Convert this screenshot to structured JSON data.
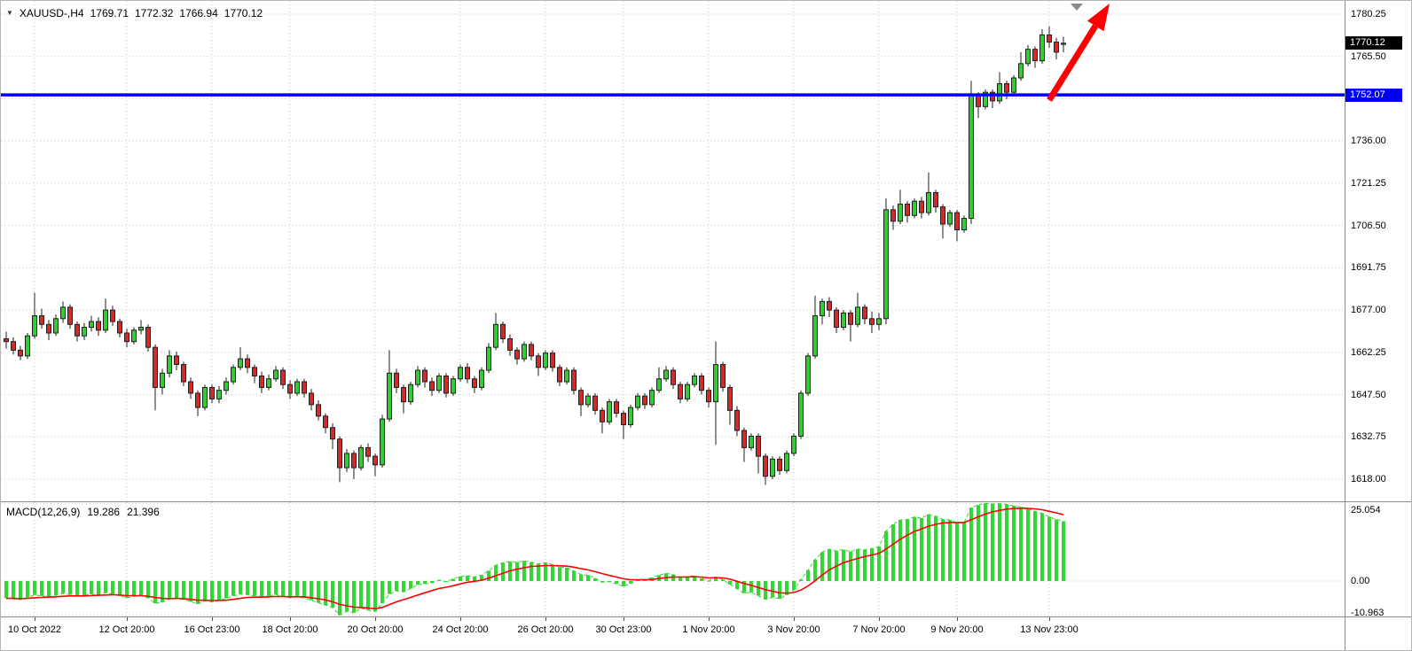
{
  "header": {
    "dropdown_icon": "▼",
    "symbol_period": "XAUUSD-,H4",
    "open": "1769.71",
    "high": "1772.32",
    "low": "1766.94",
    "close": "1770.12"
  },
  "indicator": {
    "name": "MACD(12,26,9)",
    "main_value": "19.286",
    "signal_value": "21.396"
  },
  "price_axis": {
    "labels": [
      "1780.25",
      "1765.50",
      "1736.00",
      "1721.25",
      "1706.50",
      "1691.75",
      "1677.00",
      "1662.25",
      "1647.50",
      "1632.75",
      "1618.00"
    ],
    "last_price_badge": "1770.12",
    "hline_badge": "1752.07"
  },
  "macd_axis": {
    "labels": [
      "25.054",
      "0.00",
      "-10.963"
    ]
  },
  "colors": {
    "bull_candle": "#32CD32",
    "bear_candle": "#D22B2B",
    "candle_outline": "#1f1f1f",
    "grid": "#c3c6d2",
    "hline": "#0000FF",
    "arrow": "#FF0000",
    "macd_histogram": "#33D633",
    "macd_signal": "#FF0000",
    "last_badge_bg": "#000000",
    "hline_badge_bg": "#0000EE",
    "shift_marker": "#8a8a8a"
  },
  "chart_data": {
    "type": "candlestick",
    "symbol": "XAUUSD-",
    "timeframe": "H4",
    "current_ohlc": {
      "open": 1769.71,
      "high": 1772.32,
      "low": 1766.94,
      "close": 1770.12
    },
    "y_range": [
      1618.0,
      1780.25
    ],
    "y_grid_prices": [
      1780.25,
      1765.5,
      1750.75,
      1736.0,
      1721.25,
      1706.5,
      1691.75,
      1677.0,
      1662.25,
      1647.5,
      1632.75,
      1618.0
    ],
    "hline_price": 1752.07,
    "last_price": 1770.12,
    "grid": "dotted",
    "annotations": [
      {
        "type": "horizontal-line",
        "price": 1752.07,
        "color": "#0000FF"
      },
      {
        "type": "arrow",
        "direction": "up-right",
        "color": "#FF0000"
      }
    ],
    "x_ticks": [
      {
        "index": 4,
        "label": "10 Oct 2022"
      },
      {
        "index": 17,
        "label": "12 Oct 20:00"
      },
      {
        "index": 29,
        "label": "16 Oct 23:00"
      },
      {
        "index": 40,
        "label": "18 Oct 20:00"
      },
      {
        "index": 52,
        "label": "20 Oct 20:00"
      },
      {
        "index": 64,
        "label": "24 Oct 20:00"
      },
      {
        "index": 76,
        "label": "26 Oct 20:00"
      },
      {
        "index": 87,
        "label": "30 Oct 23:00"
      },
      {
        "index": 99,
        "label": "1 Nov 20:00"
      },
      {
        "index": 111,
        "label": "3 Nov 20:00"
      },
      {
        "index": 123,
        "label": "7 Nov 20:00"
      },
      {
        "index": 134,
        "label": "9 Nov 20:00"
      },
      {
        "index": 147,
        "label": "13 Nov 23:00"
      }
    ],
    "candles": [
      [
        1667.0,
        1669.5,
        1663.5,
        1666.0
      ],
      [
        1666.0,
        1667.5,
        1661.5,
        1663.0
      ],
      [
        1663.0,
        1664.5,
        1659.5,
        1661.0
      ],
      [
        1661.0,
        1669.0,
        1660.0,
        1668.0
      ],
      [
        1668.0,
        1683.0,
        1667.0,
        1675.0
      ],
      [
        1675.0,
        1677.5,
        1670.5,
        1672.0
      ],
      [
        1672.0,
        1673.5,
        1666.5,
        1669.0
      ],
      [
        1669.0,
        1675.5,
        1668.0,
        1674.0
      ],
      [
        1674.0,
        1680.0,
        1672.5,
        1678.0
      ],
      [
        1678.0,
        1679.0,
        1670.5,
        1672.0
      ],
      [
        1672.0,
        1673.0,
        1666.0,
        1668.0
      ],
      [
        1668.0,
        1672.5,
        1666.5,
        1671.0
      ],
      [
        1671.0,
        1675.0,
        1669.5,
        1673.0
      ],
      [
        1673.0,
        1674.5,
        1668.0,
        1670.0
      ],
      [
        1670.0,
        1681.0,
        1669.0,
        1677.0
      ],
      [
        1677.0,
        1678.5,
        1671.5,
        1673.0
      ],
      [
        1673.0,
        1674.0,
        1667.5,
        1669.0
      ],
      [
        1669.0,
        1670.5,
        1664.0,
        1666.0
      ],
      [
        1666.0,
        1671.0,
        1665.0,
        1670.0
      ],
      [
        1670.0,
        1673.5,
        1668.5,
        1671.0
      ],
      [
        1671.0,
        1672.0,
        1662.5,
        1664.0
      ],
      [
        1664.0,
        1665.0,
        1642.0,
        1650.0
      ],
      [
        1650.0,
        1656.5,
        1647.5,
        1655.0
      ],
      [
        1655.0,
        1663.0,
        1653.5,
        1661.0
      ],
      [
        1661.0,
        1662.5,
        1656.0,
        1658.0
      ],
      [
        1658.0,
        1659.0,
        1650.5,
        1652.0
      ],
      [
        1652.0,
        1653.5,
        1646.0,
        1648.0
      ],
      [
        1648.0,
        1649.0,
        1640.0,
        1643.0
      ],
      [
        1643.0,
        1651.0,
        1642.0,
        1650.0
      ],
      [
        1650.0,
        1651.0,
        1644.5,
        1646.0
      ],
      [
        1646.0,
        1650.5,
        1644.5,
        1649.0
      ],
      [
        1649.0,
        1653.5,
        1647.5,
        1652.0
      ],
      [
        1652.0,
        1658.0,
        1651.0,
        1657.0
      ],
      [
        1657.0,
        1664.0,
        1656.0,
        1660.0
      ],
      [
        1660.0,
        1661.5,
        1655.0,
        1657.0
      ],
      [
        1657.0,
        1658.0,
        1651.5,
        1654.0
      ],
      [
        1654.0,
        1655.5,
        1648.0,
        1650.0
      ],
      [
        1650.0,
        1654.5,
        1649.0,
        1653.0
      ],
      [
        1653.0,
        1657.5,
        1652.0,
        1656.0
      ],
      [
        1656.0,
        1657.0,
        1649.5,
        1651.0
      ],
      [
        1651.0,
        1652.5,
        1646.0,
        1648.0
      ],
      [
        1648.0,
        1653.0,
        1647.0,
        1652.0
      ],
      [
        1652.0,
        1653.0,
        1646.5,
        1648.0
      ],
      [
        1648.0,
        1649.5,
        1642.0,
        1644.0
      ],
      [
        1644.0,
        1645.5,
        1638.5,
        1640.0
      ],
      [
        1640.0,
        1641.0,
        1634.0,
        1636.0
      ],
      [
        1636.0,
        1637.5,
        1628.5,
        1632.0
      ],
      [
        1632.0,
        1633.0,
        1617.0,
        1622.0
      ],
      [
        1622.0,
        1628.5,
        1620.5,
        1627.0
      ],
      [
        1627.0,
        1628.0,
        1618.0,
        1622.0
      ],
      [
        1622.0,
        1630.0,
        1621.0,
        1629.0
      ],
      [
        1629.0,
        1630.5,
        1624.0,
        1626.0
      ],
      [
        1626.0,
        1627.0,
        1619.0,
        1623.0
      ],
      [
        1623.0,
        1640.5,
        1622.0,
        1639.0
      ],
      [
        1639.0,
        1663.0,
        1638.0,
        1655.0
      ],
      [
        1655.0,
        1656.5,
        1648.0,
        1650.0
      ],
      [
        1650.0,
        1651.0,
        1641.0,
        1645.0
      ],
      [
        1645.0,
        1652.0,
        1644.0,
        1651.0
      ],
      [
        1651.0,
        1657.5,
        1650.0,
        1656.0
      ],
      [
        1656.0,
        1657.0,
        1650.0,
        1652.0
      ],
      [
        1652.0,
        1653.5,
        1647.0,
        1649.0
      ],
      [
        1649.0,
        1655.0,
        1648.0,
        1654.0
      ],
      [
        1654.0,
        1655.0,
        1646.5,
        1648.0
      ],
      [
        1648.0,
        1654.0,
        1647.0,
        1653.0
      ],
      [
        1653.0,
        1658.0,
        1652.0,
        1657.0
      ],
      [
        1657.0,
        1658.5,
        1651.5,
        1653.0
      ],
      [
        1653.0,
        1654.0,
        1648.0,
        1650.0
      ],
      [
        1650.0,
        1657.0,
        1649.0,
        1656.0
      ],
      [
        1656.0,
        1665.5,
        1655.0,
        1664.0
      ],
      [
        1664.0,
        1676.0,
        1663.0,
        1672.0
      ],
      [
        1672.0,
        1673.0,
        1665.5,
        1667.0
      ],
      [
        1667.0,
        1668.5,
        1661.0,
        1663.0
      ],
      [
        1663.0,
        1664.0,
        1658.0,
        1660.0
      ],
      [
        1660.0,
        1666.0,
        1659.0,
        1665.0
      ],
      [
        1665.0,
        1666.0,
        1659.5,
        1661.0
      ],
      [
        1661.0,
        1662.0,
        1654.0,
        1657.0
      ],
      [
        1657.0,
        1663.0,
        1656.0,
        1662.0
      ],
      [
        1662.0,
        1663.0,
        1655.5,
        1657.0
      ],
      [
        1657.0,
        1658.0,
        1650.5,
        1652.0
      ],
      [
        1652.0,
        1657.0,
        1651.0,
        1656.0
      ],
      [
        1656.0,
        1657.0,
        1647.5,
        1649.0
      ],
      [
        1649.0,
        1650.0,
        1640.0,
        1644.0
      ],
      [
        1644.0,
        1648.0,
        1643.0,
        1647.0
      ],
      [
        1647.0,
        1648.0,
        1640.5,
        1642.0
      ],
      [
        1642.0,
        1643.0,
        1634.0,
        1638.0
      ],
      [
        1638.0,
        1646.0,
        1637.0,
        1645.0
      ],
      [
        1645.0,
        1646.0,
        1639.5,
        1641.0
      ],
      [
        1641.0,
        1642.0,
        1632.0,
        1637.0
      ],
      [
        1637.0,
        1644.0,
        1636.0,
        1643.0
      ],
      [
        1643.0,
        1648.0,
        1642.0,
        1647.0
      ],
      [
        1647.0,
        1648.0,
        1642.5,
        1644.0
      ],
      [
        1644.0,
        1650.0,
        1643.0,
        1649.0
      ],
      [
        1649.0,
        1657.0,
        1648.0,
        1653.0
      ],
      [
        1653.0,
        1657.5,
        1652.0,
        1656.0
      ],
      [
        1656.0,
        1657.0,
        1649.5,
        1651.0
      ],
      [
        1651.0,
        1652.0,
        1644.5,
        1646.0
      ],
      [
        1646.0,
        1652.0,
        1645.0,
        1651.0
      ],
      [
        1651.0,
        1655.0,
        1650.0,
        1654.0
      ],
      [
        1654.0,
        1655.0,
        1647.5,
        1649.0
      ],
      [
        1649.0,
        1650.0,
        1643.0,
        1645.0
      ],
      [
        1645.0,
        1666.0,
        1630.0,
        1658.0
      ],
      [
        1658.0,
        1659.0,
        1648.5,
        1650.0
      ],
      [
        1650.0,
        1651.0,
        1637.0,
        1642.0
      ],
      [
        1642.0,
        1643.5,
        1633.0,
        1635.0
      ],
      [
        1635.0,
        1636.0,
        1624.0,
        1629.0
      ],
      [
        1629.0,
        1634.0,
        1628.0,
        1633.0
      ],
      [
        1633.0,
        1634.0,
        1620.0,
        1626.0
      ],
      [
        1626.0,
        1627.0,
        1616.0,
        1619.0
      ],
      [
        1619.0,
        1626.0,
        1618.0,
        1625.0
      ],
      [
        1625.0,
        1626.0,
        1619.5,
        1621.0
      ],
      [
        1621.0,
        1628.0,
        1620.0,
        1627.0
      ],
      [
        1627.0,
        1634.0,
        1626.0,
        1633.0
      ],
      [
        1633.0,
        1649.0,
        1632.0,
        1648.0
      ],
      [
        1648.0,
        1662.0,
        1647.0,
        1661.0
      ],
      [
        1661.0,
        1682.0,
        1660.0,
        1675.0
      ],
      [
        1675.0,
        1681.0,
        1672.0,
        1680.0
      ],
      [
        1680.0,
        1681.5,
        1674.5,
        1677.0
      ],
      [
        1677.0,
        1678.0,
        1669.0,
        1671.0
      ],
      [
        1671.0,
        1677.0,
        1670.0,
        1676.0
      ],
      [
        1676.0,
        1677.0,
        1666.0,
        1672.0
      ],
      [
        1672.0,
        1683.0,
        1671.0,
        1678.0
      ],
      [
        1678.0,
        1679.0,
        1672.0,
        1674.0
      ],
      [
        1674.0,
        1676.5,
        1669.0,
        1672.0
      ],
      [
        1672.0,
        1676.0,
        1670.0,
        1674.0
      ],
      [
        1674.0,
        1716.0,
        1672.0,
        1712.0
      ],
      [
        1712.0,
        1713.5,
        1705.0,
        1708.0
      ],
      [
        1708.0,
        1719.0,
        1707.0,
        1714.0
      ],
      [
        1714.0,
        1715.0,
        1707.5,
        1710.0
      ],
      [
        1710.0,
        1716.0,
        1709.0,
        1715.0
      ],
      [
        1715.0,
        1716.5,
        1709.0,
        1711.0
      ],
      [
        1711.0,
        1725.0,
        1710.0,
        1718.0
      ],
      [
        1718.0,
        1719.0,
        1711.0,
        1713.0
      ],
      [
        1713.0,
        1714.0,
        1702.0,
        1707.0
      ],
      [
        1707.0,
        1712.0,
        1706.0,
        1711.0
      ],
      [
        1711.0,
        1712.0,
        1701.0,
        1705.0
      ],
      [
        1705.0,
        1710.0,
        1704.0,
        1709.0
      ],
      [
        1709.0,
        1757.0,
        1707.0,
        1752.0
      ],
      [
        1752.0,
        1753.0,
        1744.0,
        1748.0
      ],
      [
        1748.0,
        1754.0,
        1747.0,
        1753.0
      ],
      [
        1753.0,
        1754.0,
        1747.5,
        1750.0
      ],
      [
        1750.0,
        1760.0,
        1749.0,
        1756.0
      ],
      [
        1756.0,
        1757.0,
        1750.5,
        1753.0
      ],
      [
        1753.0,
        1759.0,
        1752.0,
        1758.0
      ],
      [
        1758.0,
        1767.0,
        1757.0,
        1763.0
      ],
      [
        1763.0,
        1769.5,
        1762.0,
        1768.0
      ],
      [
        1768.0,
        1769.0,
        1761.5,
        1764.0
      ],
      [
        1764.0,
        1775.0,
        1763.0,
        1773.0
      ],
      [
        1773.0,
        1776.0,
        1768.5,
        1770.5
      ],
      [
        1770.5,
        1772.0,
        1764.5,
        1767.0
      ],
      [
        1769.71,
        1772.32,
        1766.94,
        1770.12
      ]
    ],
    "macd": {
      "levels": [
        25.054,
        0.0,
        -10.963
      ],
      "current_main": 19.286,
      "current_signal": 21.396,
      "histogram": [
        -5.5,
        -5.8,
        -6.0,
        -5.2,
        -4.5,
        -4.8,
        -5.2,
        -4.6,
        -4.0,
        -4.4,
        -5.0,
        -4.6,
        -4.2,
        -4.5,
        -3.8,
        -4.2,
        -4.8,
        -5.4,
        -5.0,
        -4.6,
        -5.5,
        -7.2,
        -6.8,
        -5.8,
        -5.5,
        -6.0,
        -6.6,
        -7.4,
        -6.4,
        -6.8,
        -6.2,
        -5.6,
        -4.8,
        -4.2,
        -4.4,
        -4.8,
        -5.2,
        -4.8,
        -4.4,
        -4.9,
        -5.4,
        -5.0,
        -5.5,
        -6.2,
        -7.0,
        -7.8,
        -8.6,
        -10.963,
        -9.8,
        -10.2,
        -8.8,
        -9.4,
        -9.8,
        -7.2,
        -4.2,
        -3.2,
        -3.5,
        -2.4,
        -1.2,
        -0.9,
        -0.6,
        0.3,
        -0.2,
        0.7,
        1.5,
        1.7,
        1.3,
        1.9,
        3.3,
        5.1,
        5.9,
        6.3,
        6.1,
        6.5,
        6.1,
        5.5,
        5.9,
        5.3,
        4.5,
        4.3,
        3.3,
        2.1,
        1.9,
        0.9,
        -0.4,
        -0.2,
        -0.9,
        -1.7,
        -0.8,
        0.3,
        0.5,
        1.1,
        1.9,
        2.5,
        2.1,
        1.3,
        1.5,
        1.7,
        0.9,
        0.1,
        1.3,
        0.5,
        -1.1,
        -2.5,
        -3.9,
        -3.7,
        -4.7,
        -5.9,
        -5.3,
        -5.7,
        -4.5,
        -2.9,
        0.5,
        3.5,
        6.9,
        9.3,
        10.3,
        9.7,
        10.1,
        9.5,
        10.3,
        10.1,
        10.5,
        11.1,
        16.1,
        18.3,
        19.7,
        19.9,
        20.7,
        20.3,
        21.5,
        20.9,
        19.9,
        19.7,
        18.7,
        18.9,
        23.7,
        24.5,
        25.054,
        24.9,
        25.0,
        24.7,
        24.3,
        23.9,
        23.3,
        22.5,
        21.9,
        20.7,
        19.9,
        19.286
      ],
      "signal": [
        -5.6,
        -5.6,
        -5.7,
        -5.6,
        -5.4,
        -5.3,
        -5.2,
        -5.1,
        -4.9,
        -4.8,
        -4.8,
        -4.8,
        -4.7,
        -4.6,
        -4.5,
        -4.4,
        -4.5,
        -4.7,
        -4.7,
        -4.7,
        -4.9,
        -5.3,
        -5.6,
        -5.7,
        -5.6,
        -5.7,
        -5.9,
        -6.2,
        -6.2,
        -6.3,
        -6.3,
        -6.2,
        -5.9,
        -5.6,
        -5.3,
        -5.2,
        -5.2,
        -5.1,
        -5.0,
        -5.0,
        -5.1,
        -5.1,
        -5.1,
        -5.4,
        -5.7,
        -6.1,
        -6.7,
        -7.5,
        -8.0,
        -8.4,
        -8.5,
        -8.7,
        -8.9,
        -8.5,
        -7.6,
        -6.7,
        -6.0,
        -5.3,
        -4.5,
        -3.8,
        -3.1,
        -2.4,
        -2.0,
        -1.5,
        -0.9,
        -0.4,
        -0.1,
        0.3,
        0.9,
        1.7,
        2.5,
        3.3,
        3.8,
        4.3,
        4.7,
        4.8,
        5.0,
        5.0,
        4.9,
        4.8,
        4.5,
        4.0,
        3.6,
        3.0,
        2.4,
        1.8,
        1.3,
        0.7,
        0.4,
        0.4,
        0.4,
        0.5,
        0.8,
        1.1,
        1.3,
        1.3,
        1.3,
        1.4,
        1.3,
        1.0,
        1.1,
        1.0,
        0.6,
        -0.1,
        -0.8,
        -1.4,
        -2.1,
        -2.8,
        -3.3,
        -3.8,
        -3.9,
        -3.7,
        -2.9,
        -1.6,
        0.1,
        1.9,
        3.6,
        4.8,
        5.9,
        6.6,
        7.3,
        7.9,
        8.4,
        8.9,
        10.3,
        11.9,
        13.5,
        14.8,
        16.0,
        16.8,
        17.7,
        18.3,
        18.7,
        18.9,
        18.9,
        18.9,
        19.8,
        20.7,
        21.6,
        22.3,
        22.8,
        23.2,
        23.4,
        23.5,
        23.4,
        23.3,
        23.0,
        22.5,
        22.0,
        21.396
      ]
    }
  }
}
